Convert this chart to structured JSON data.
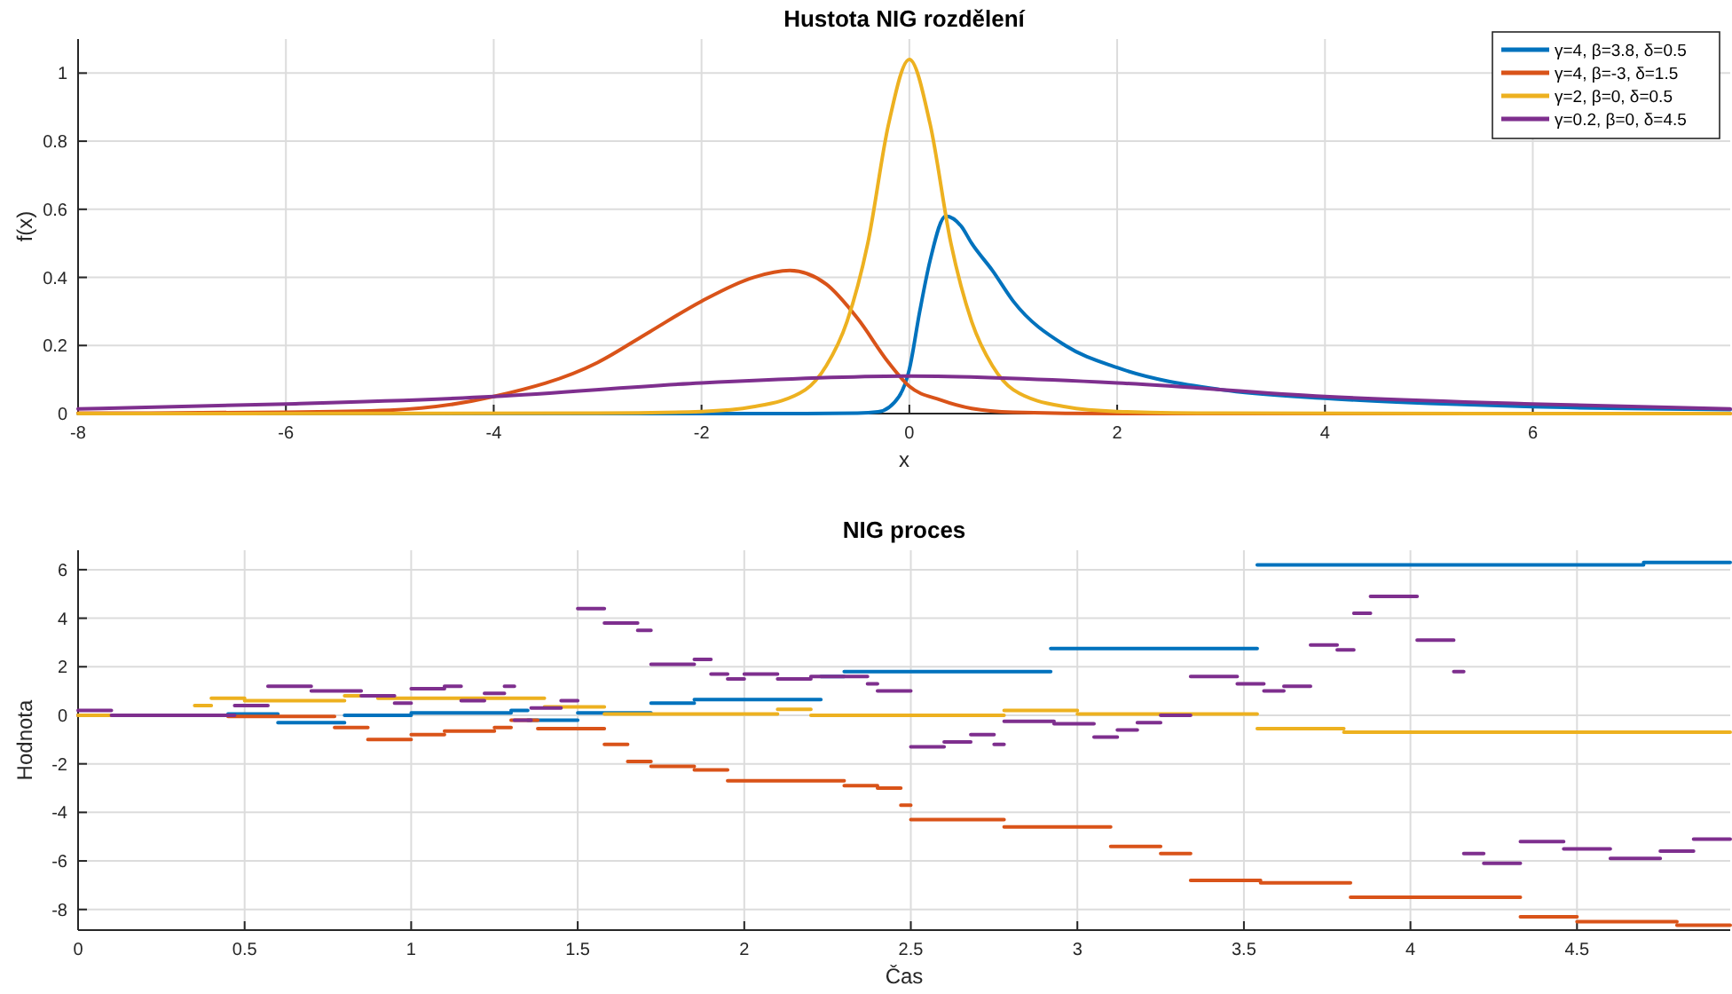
{
  "chart_data": [
    {
      "type": "line",
      "title": "Hustota NIG rozdělení",
      "xlabel": "x",
      "ylabel": "f(x)",
      "xlim": [
        -8,
        7.9
      ],
      "ylim": [
        0,
        1.1
      ],
      "xticks": [
        -8,
        -6,
        -4,
        -2,
        0,
        2,
        4,
        6
      ],
      "yticks": [
        0,
        0.2,
        0.4,
        0.6,
        0.8,
        1
      ],
      "grid": true,
      "legend": "top right",
      "series": [
        {
          "name": "γ=4, β=3.8, δ=0.5",
          "color": "#0072bd",
          "x": [
            -8,
            -1,
            -0.5,
            -0.3,
            -0.1,
            0,
            0.1,
            0.2,
            0.35,
            0.5,
            0.6,
            0.8,
            1,
            1.5,
            2,
            3,
            4,
            5,
            6,
            7.9
          ],
          "values": [
            0,
            0,
            0.001,
            0.005,
            0.05,
            0.13,
            0.3,
            0.45,
            0.58,
            0.55,
            0.5,
            0.42,
            0.33,
            0.2,
            0.135,
            0.07,
            0.045,
            0.03,
            0.02,
            0.012
          ]
        },
        {
          "name": "γ=4, β=-3, δ=1.5",
          "color": "#d95319",
          "x": [
            -8,
            -6,
            -5,
            -4,
            -3,
            -2.5,
            -2,
            -1.5,
            -1.15,
            -0.8,
            -0.5,
            -0.2,
            0,
            0.3,
            0.6,
            1,
            2,
            7.9
          ],
          "values": [
            0.001,
            0.004,
            0.01,
            0.05,
            0.15,
            0.24,
            0.33,
            0.4,
            0.42,
            0.38,
            0.28,
            0.15,
            0.08,
            0.04,
            0.015,
            0.004,
            0,
            0
          ]
        },
        {
          "name": "γ=2, β=0, δ=0.5",
          "color": "#edb120",
          "x": [
            -8,
            -3,
            -2,
            -1.5,
            -1,
            -0.8,
            -0.6,
            -0.4,
            -0.2,
            0,
            0.2,
            0.4,
            0.6,
            0.8,
            1,
            1.5,
            2,
            3,
            7.9
          ],
          "values": [
            0,
            0.001,
            0.006,
            0.02,
            0.07,
            0.14,
            0.27,
            0.5,
            0.85,
            1.04,
            0.85,
            0.5,
            0.27,
            0.14,
            0.07,
            0.02,
            0.006,
            0.001,
            0
          ]
        },
        {
          "name": "γ=0.2, β=0, δ=4.5",
          "color": "#7e2f8e",
          "x": [
            -8,
            -6,
            -4,
            -2,
            0,
            2,
            4,
            6,
            7.9
          ],
          "values": [
            0.014,
            0.028,
            0.05,
            0.09,
            0.11,
            0.09,
            0.05,
            0.028,
            0.014
          ]
        }
      ]
    },
    {
      "type": "step",
      "title": "NIG proces",
      "xlabel": "Čas",
      "ylabel": "Hodnota",
      "xlim": [
        0,
        4.96
      ],
      "ylim": [
        -8.85,
        6.8
      ],
      "xticks": [
        0,
        0.5,
        1,
        1.5,
        2,
        2.5,
        3,
        3.5,
        4,
        4.5
      ],
      "yticks": [
        -8,
        -6,
        -4,
        -2,
        0,
        2,
        4,
        6
      ],
      "grid": true,
      "series": [
        {
          "color": "#0072bd",
          "x": [
            0,
            0.45,
            0.6,
            0.8,
            1.0,
            1.3,
            1.35,
            1.5,
            1.72,
            1.85,
            2.23,
            2.3,
            2.92,
            3.54,
            4.7,
            4.96
          ],
          "values": [
            0,
            0.05,
            -0.3,
            0,
            0.1,
            0.2,
            -0.2,
            0.1,
            0.5,
            0.65,
            1.6,
            1.8,
            2.75,
            6.2,
            6.3,
            6.3
          ]
        },
        {
          "color": "#d95319",
          "x": [
            0,
            0.45,
            0.77,
            0.87,
            1.0,
            1.1,
            1.25,
            1.3,
            1.38,
            1.58,
            1.65,
            1.72,
            1.85,
            1.95,
            2.3,
            2.4,
            2.47,
            2.5,
            2.78,
            3.1,
            3.25,
            3.34,
            3.55,
            3.82,
            4.33,
            4.5,
            4.8,
            4.96
          ],
          "values": [
            0,
            -0.05,
            -0.5,
            -1.0,
            -0.8,
            -0.65,
            -0.5,
            -0.2,
            -0.55,
            -1.2,
            -1.9,
            -2.1,
            -2.25,
            -2.7,
            -2.9,
            -3.0,
            -3.7,
            -4.3,
            -4.6,
            -5.4,
            -5.7,
            -6.8,
            -6.9,
            -7.5,
            -8.3,
            -8.5,
            -8.65,
            -8.65
          ]
        },
        {
          "color": "#edb120",
          "x": [
            0,
            0.35,
            0.4,
            0.5,
            0.8,
            0.9,
            1.4,
            1.58,
            2.1,
            2.2,
            2.78,
            3.0,
            3.54,
            3.8,
            4.96
          ],
          "values": [
            0,
            0.4,
            0.7,
            0.6,
            0.8,
            0.7,
            0.35,
            0.05,
            0.25,
            0,
            0.2,
            0.05,
            -0.55,
            -0.7,
            -0.7
          ]
        },
        {
          "color": "#7e2f8e",
          "x": [
            0,
            0.1,
            0.47,
            0.57,
            0.7,
            0.85,
            0.95,
            1.0,
            1.1,
            1.15,
            1.22,
            1.28,
            1.31,
            1.36,
            1.45,
            1.5,
            1.58,
            1.68,
            1.72,
            1.85,
            1.9,
            1.95,
            2.0,
            2.1,
            2.2,
            2.37,
            2.4,
            2.5,
            2.6,
            2.68,
            2.75,
            2.78,
            2.93,
            3.05,
            3.12,
            3.18,
            3.25,
            3.34,
            3.48,
            3.56,
            3.62,
            3.7,
            3.78,
            3.83,
            3.88,
            4.02,
            4.13,
            4.16,
            4.22,
            4.33,
            4.46,
            4.6,
            4.75,
            4.85,
            4.96
          ],
          "values": [
            0.2,
            0,
            0.4,
            1.2,
            1.0,
            0.8,
            0.5,
            1.1,
            1.2,
            0.6,
            0.9,
            1.2,
            -0.2,
            0.3,
            0.6,
            4.4,
            3.8,
            3.5,
            2.1,
            2.3,
            1.7,
            1.5,
            1.7,
            1.5,
            1.6,
            1.3,
            1.0,
            -1.3,
            -1.1,
            -0.8,
            -1.2,
            -0.25,
            -0.35,
            -0.9,
            -0.6,
            -0.3,
            0,
            1.6,
            1.3,
            1.0,
            1.2,
            2.9,
            2.7,
            4.2,
            4.9,
            3.1,
            1.8,
            -5.7,
            -6.1,
            -5.2,
            -5.5,
            -5.9,
            -5.6,
            -5.1,
            -5.1
          ]
        }
      ]
    }
  ]
}
